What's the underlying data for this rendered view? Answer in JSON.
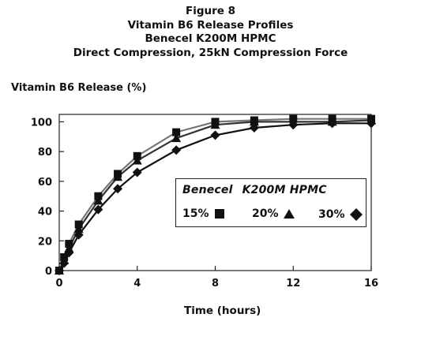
{
  "chart_data": {
    "type": "line",
    "titles": [
      "Figure 8",
      "Vitamin B6 Release Profiles",
      "Benecel K200M HPMC",
      "Direct Compression, 25kN Compression Force"
    ],
    "xlabel": "Time (hours)",
    "ylabel": "Vitamin B6 Release (%)",
    "xlim": [
      0,
      16
    ],
    "ylim": [
      0,
      105
    ],
    "xticks": [
      0,
      4,
      8,
      12,
      16
    ],
    "yticks": [
      0,
      20,
      40,
      60,
      80,
      100
    ],
    "grid": false,
    "legend": {
      "title_left": "Benecel",
      "title_right": "K200M HPMC",
      "placement": "lower-right"
    },
    "series": [
      {
        "name": "15%",
        "marker": "square",
        "color": "#777777",
        "x": [
          0,
          0.25,
          0.5,
          1,
          2,
          3,
          4,
          6,
          8,
          10,
          12,
          14,
          16
        ],
        "y": [
          0,
          9,
          18,
          31,
          50,
          65,
          77,
          93,
          100,
          101,
          102,
          102,
          102
        ]
      },
      {
        "name": "20%",
        "marker": "triangle",
        "color": "#333333",
        "x": [
          0,
          0.25,
          0.5,
          1,
          2,
          3,
          4,
          6,
          8,
          10,
          12,
          14,
          16
        ],
        "y": [
          0,
          7,
          15,
          28,
          47,
          63,
          74,
          89,
          98,
          100,
          100,
          100,
          101
        ]
      },
      {
        "name": "30%",
        "marker": "diamond",
        "color": "#111111",
        "x": [
          0,
          0.25,
          0.5,
          1,
          2,
          3,
          4,
          6,
          8,
          10,
          12,
          14,
          16
        ],
        "y": [
          0,
          5,
          12,
          24,
          41,
          55,
          66,
          81,
          91,
          96,
          98,
          99,
          99
        ]
      }
    ]
  }
}
